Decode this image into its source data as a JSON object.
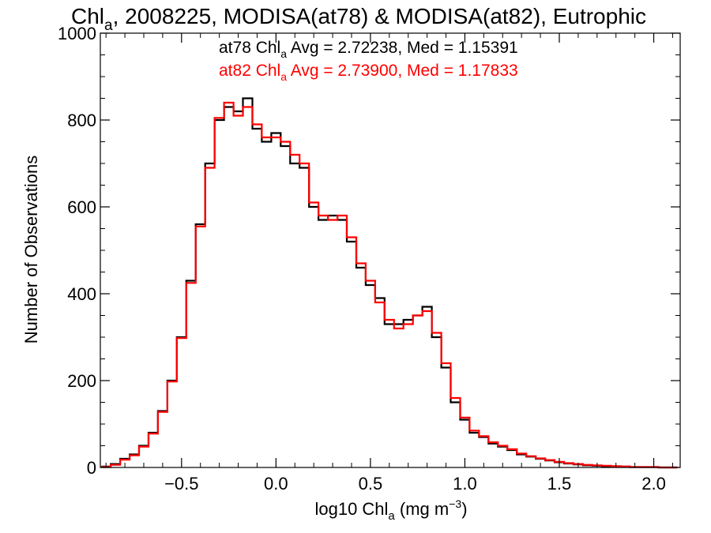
{
  "chart_data": {
    "type": "histogram",
    "title": {
      "main": "Chl",
      "sub": "a",
      "rest": ", 2008225, MODISA(at78) & MODISA(at82), Eutrophic"
    },
    "xlabel": {
      "main": "log10 Chl",
      "sub": "a",
      "units_pre": " (mg m",
      "units_sup": "−3",
      "units_post": ")"
    },
    "ylabel": "Number of Observations",
    "xlim": [
      -0.93,
      2.14
    ],
    "ylim": [
      0,
      1000
    ],
    "xticks": [
      -0.5,
      0.0,
      0.5,
      1.0,
      1.5,
      2.0
    ],
    "xtick_labels": [
      "−0.5",
      "0.0",
      "0.5",
      "1.0",
      "1.5",
      "2.0"
    ],
    "yticks": [
      0,
      200,
      400,
      600,
      800,
      1000
    ],
    "ytick_labels": [
      "0",
      "200",
      "400",
      "600",
      "800",
      "1000"
    ],
    "grid": false,
    "x": [
      -0.9,
      -0.85,
      -0.8,
      -0.75,
      -0.7,
      -0.65,
      -0.6,
      -0.55,
      -0.5,
      -0.45,
      -0.4,
      -0.35,
      -0.3,
      -0.25,
      -0.2,
      -0.15,
      -0.1,
      -0.05,
      0.0,
      0.05,
      0.1,
      0.15,
      0.2,
      0.25,
      0.3,
      0.35,
      0.4,
      0.45,
      0.5,
      0.55,
      0.6,
      0.65,
      0.7,
      0.75,
      0.8,
      0.85,
      0.9,
      0.95,
      1.0,
      1.05,
      1.1,
      1.15,
      1.2,
      1.25,
      1.3,
      1.35,
      1.4,
      1.45,
      1.5,
      1.55,
      1.6,
      1.65,
      1.7,
      1.75,
      1.8,
      1.85,
      1.9,
      1.95,
      2.0,
      2.05,
      2.1
    ],
    "series": [
      {
        "name": "at78",
        "color": "#000000",
        "values": [
          2,
          8,
          20,
          30,
          50,
          80,
          130,
          200,
          300,
          430,
          560,
          700,
          800,
          830,
          820,
          850,
          780,
          750,
          770,
          740,
          700,
          690,
          600,
          570,
          580,
          570,
          520,
          460,
          420,
          390,
          330,
          330,
          340,
          350,
          370,
          300,
          230,
          150,
          110,
          80,
          70,
          55,
          48,
          40,
          30,
          25,
          20,
          16,
          12,
          9,
          7,
          5,
          4,
          3,
          2,
          2,
          1,
          1,
          1,
          0,
          0
        ]
      },
      {
        "name": "at82",
        "color": "#ff0000",
        "values": [
          1,
          6,
          18,
          28,
          48,
          78,
          128,
          198,
          298,
          425,
          555,
          690,
          805,
          840,
          810,
          830,
          790,
          760,
          760,
          750,
          720,
          700,
          610,
          580,
          570,
          580,
          530,
          470,
          430,
          380,
          340,
          320,
          330,
          350,
          360,
          310,
          240,
          160,
          115,
          85,
          72,
          58,
          50,
          42,
          32,
          26,
          21,
          17,
          13,
          10,
          8,
          6,
          5,
          4,
          3,
          2,
          1,
          1,
          1,
          0,
          0
        ]
      }
    ],
    "annotations": [
      {
        "pre": "at78 Chl",
        "sub": "a",
        "post": " Avg = 2.72238, Med = 1.15391",
        "color": "#000000"
      },
      {
        "pre": "at82 Chl",
        "sub": "a",
        "post": " Avg = 2.73900, Med = 1.17833",
        "color": "#ff0000"
      }
    ]
  }
}
